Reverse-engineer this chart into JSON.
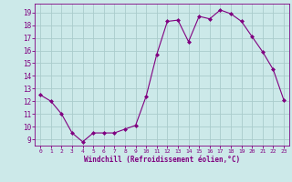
{
  "x": [
    0,
    1,
    2,
    3,
    4,
    5,
    6,
    7,
    8,
    9,
    10,
    11,
    12,
    13,
    14,
    15,
    16,
    17,
    18,
    19,
    20,
    21,
    22,
    23
  ],
  "y": [
    12.5,
    12.0,
    11.0,
    9.5,
    8.8,
    9.5,
    9.5,
    9.5,
    9.8,
    10.1,
    12.4,
    15.7,
    18.3,
    18.4,
    16.7,
    18.7,
    18.5,
    19.2,
    18.9,
    18.3,
    17.1,
    15.9,
    14.5,
    12.1
  ],
  "line_color": "#800080",
  "marker": "D",
  "marker_size": 2,
  "bg_color": "#cce9e9",
  "grid_color": "#aacccc",
  "xlabel": "Windchill (Refroidissement éolien,°C)",
  "xlabel_color": "#800080",
  "tick_color": "#800080",
  "yticks": [
    9,
    10,
    11,
    12,
    13,
    14,
    15,
    16,
    17,
    18,
    19
  ],
  "xticks": [
    0,
    1,
    2,
    3,
    4,
    5,
    6,
    7,
    8,
    9,
    10,
    11,
    12,
    13,
    14,
    15,
    16,
    17,
    18,
    19,
    20,
    21,
    22,
    23
  ],
  "ylim": [
    8.5,
    19.7
  ],
  "xlim": [
    -0.5,
    23.5
  ]
}
